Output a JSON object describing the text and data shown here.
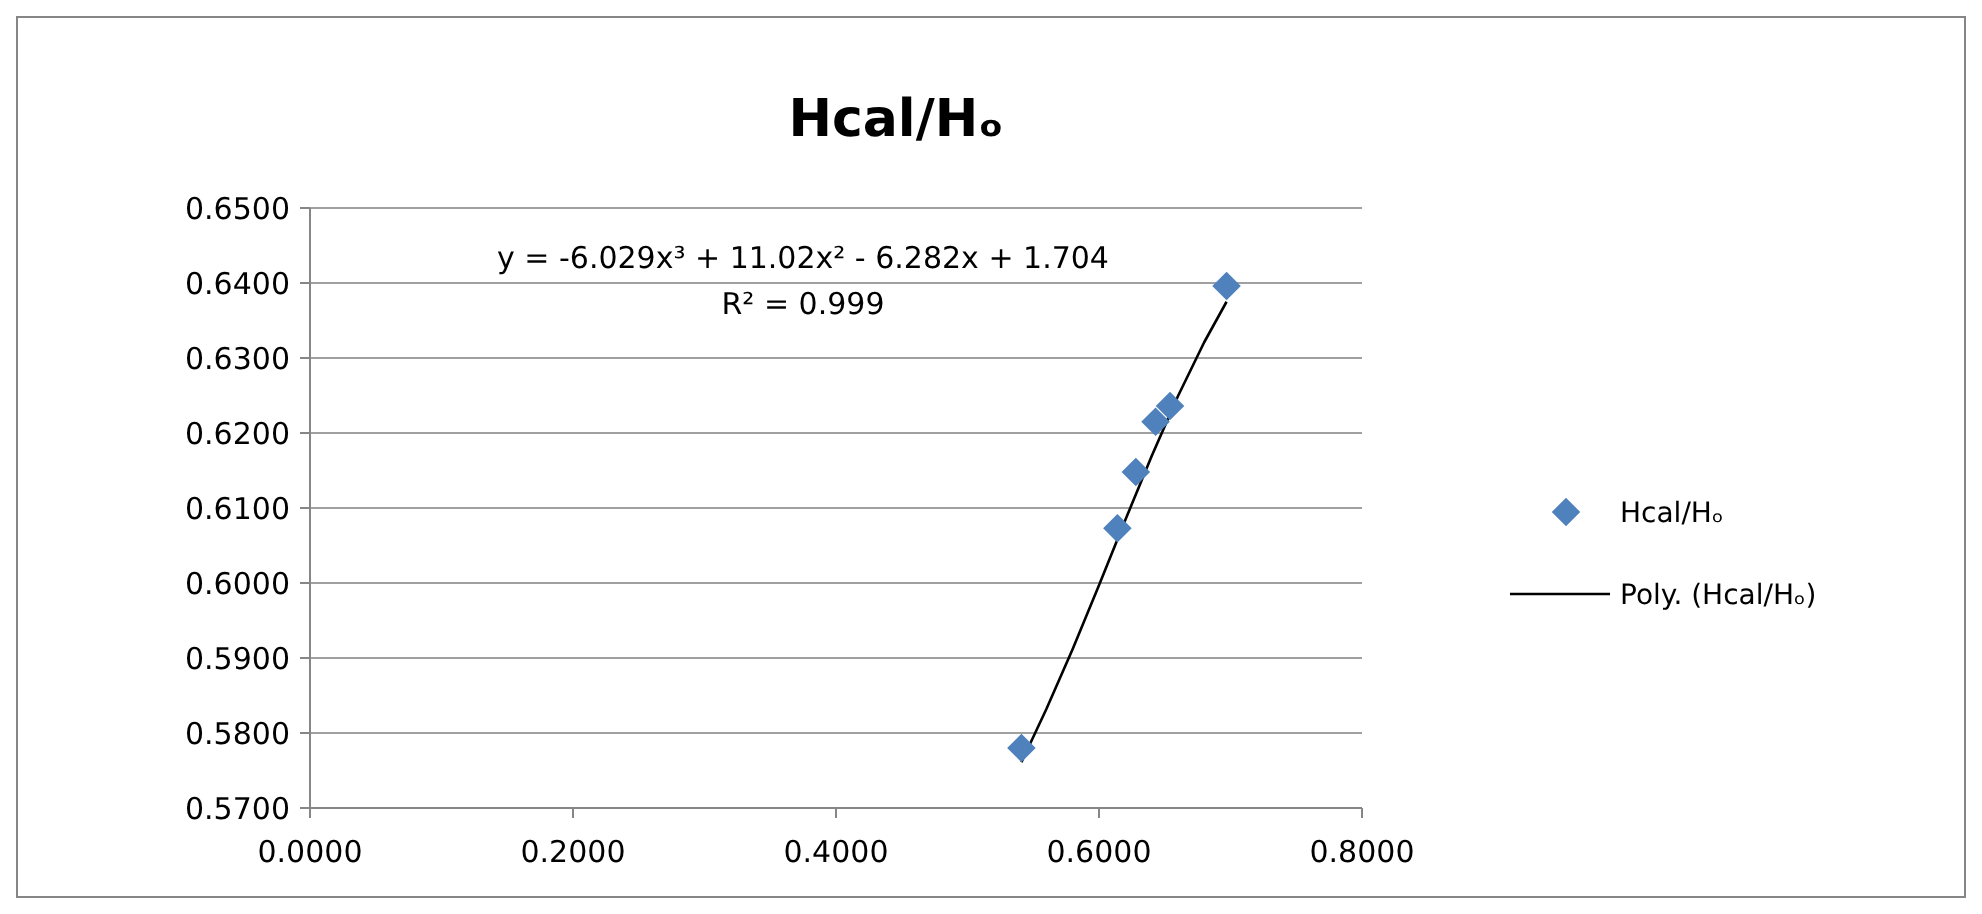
{
  "chart_data": {
    "type": "scatter",
    "title": "Hcal/Hₒ",
    "xlim": [
      0,
      0.8
    ],
    "xticks": [
      {
        "value": 0,
        "label": "0.0000"
      },
      {
        "value": 0.2,
        "label": "0.2000"
      },
      {
        "value": 0.4,
        "label": "0.4000"
      },
      {
        "value": 0.6,
        "label": "0.6000"
      },
      {
        "value": 0.8,
        "label": "0.8000"
      }
    ],
    "ylim": [
      0.57,
      0.65
    ],
    "yticks": [
      {
        "value": 0.57,
        "label": "0.5700"
      },
      {
        "value": 0.58,
        "label": "0.5800"
      },
      {
        "value": 0.59,
        "label": "0.5900"
      },
      {
        "value": 0.6,
        "label": "0.6000"
      },
      {
        "value": 0.61,
        "label": "0.6100"
      },
      {
        "value": 0.62,
        "label": "0.6200"
      },
      {
        "value": 0.63,
        "label": "0.6300"
      },
      {
        "value": 0.64,
        "label": "0.6400"
      },
      {
        "value": 0.65,
        "label": "0.6500"
      }
    ],
    "grid": "y",
    "legend": "right",
    "marker": "diamond",
    "annotations": [
      "y = -6.029x³ + 11.02x² - 6.282x + 1.704",
      "R² = 0.999"
    ],
    "series": [
      {
        "name": "Hcal/Hₒ",
        "type": "scatter",
        "color": "#4f81bd",
        "x": [
          0.541,
          0.614,
          0.628,
          0.643,
          0.654,
          0.697
        ],
        "values": [
          0.578,
          0.6073,
          0.6148,
          0.6215,
          0.6236,
          0.6396
        ]
      },
      {
        "name": "Poly. (Hcal/Hₒ)",
        "type": "line",
        "color": "#000000",
        "line_style": "solid",
        "marker": "none",
        "x": [
          0.541,
          0.56,
          0.58,
          0.6,
          0.62,
          0.64,
          0.66,
          0.68,
          0.697
        ],
        "values": [
          0.5761,
          0.5832,
          0.5912,
          0.5997,
          0.6084,
          0.6169,
          0.6249,
          0.6321,
          0.6375
        ]
      }
    ]
  }
}
